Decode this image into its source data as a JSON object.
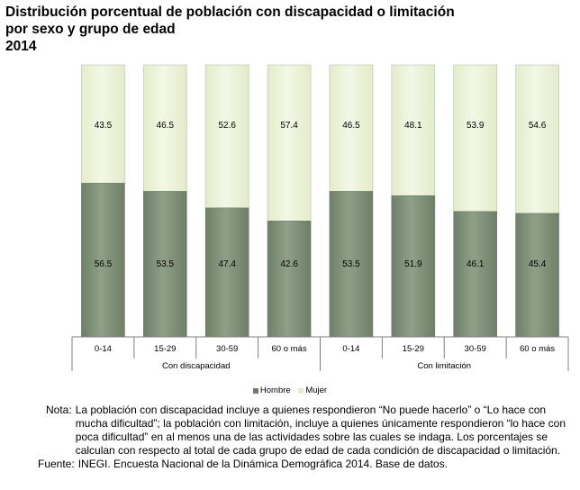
{
  "title": {
    "line1": "Distribución porcentual de población con discapacidad o limitación",
    "line2": "por sexo y grupo de edad",
    "line3": "2014"
  },
  "colors": {
    "hombre": "#6e7f68",
    "hombre_light": "#8fa088",
    "mujer": "#e3ecc9",
    "mujer_light": "#f3f7e6",
    "edge": "#b9c2ae"
  },
  "legend": {
    "hombre": "Hombre",
    "mujer": "Mujer"
  },
  "chart_data": {
    "type": "bar",
    "stacked": true,
    "percent": true,
    "ylim": [
      0,
      100
    ],
    "grid": false,
    "legend_position": "bottom",
    "categories": [
      "0-14",
      "15-29",
      "30-59",
      "60 o más",
      "0-14",
      "15-29",
      "30-59",
      "60 o más"
    ],
    "groups": [
      {
        "label": "Con discapacidad",
        "span": [
          0,
          3
        ]
      },
      {
        "label": "Con limitación",
        "span": [
          4,
          7
        ]
      }
    ],
    "series": [
      {
        "name": "Hombre",
        "values": [
          56.5,
          53.5,
          47.4,
          42.6,
          53.5,
          51.9,
          46.1,
          45.4
        ]
      },
      {
        "name": "Mujer",
        "values": [
          43.5,
          46.5,
          52.6,
          57.4,
          46.5,
          48.1,
          53.9,
          54.6
        ]
      }
    ],
    "value_labels": {
      "Hombre": [
        "56.5",
        "53.5",
        "47.4",
        "42.6",
        "53.5",
        "51.9",
        "46.1",
        "45.4"
      ],
      "Mujer": [
        "43.5",
        "46.5",
        "52.6",
        "57.4",
        "46.5",
        "48.1",
        "53.9",
        "54.6"
      ]
    }
  },
  "notes": {
    "nota_label": "Nota:",
    "nota_text": "La población con discapacidad incluye a quienes respondieron “No puede hacerlo” o “Lo hace con mucha dificultad”; la población con limitación, incluye a quienes únicamente respondieron “lo hace con poca dificultad” en al menos una de las actividades sobre las cuales se indaga. Los porcentajes se calculan con respecto al total de cada grupo de edad de cada condición de discapacidad o limitación.",
    "fuente_label": "Fuente:",
    "fuente_text": "INEGI. Encuesta Nacional de la Dinámica Demográfica 2014. Base de datos."
  }
}
